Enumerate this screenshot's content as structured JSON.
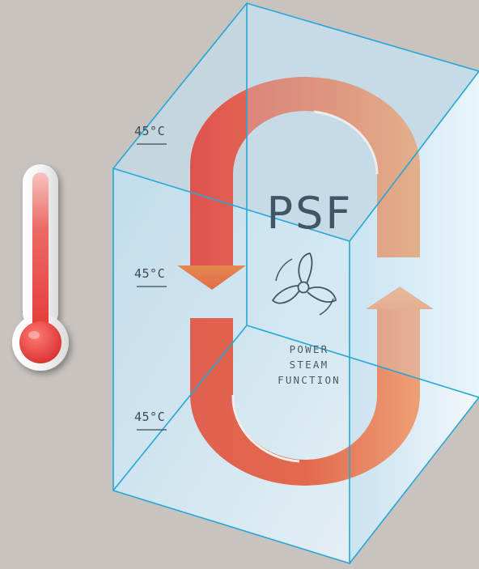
{
  "title": "PSF",
  "subtitle_lines": [
    "POWER",
    "STEAM",
    "FUNCTION"
  ],
  "temperature_labels": [
    "45°C",
    "45°C",
    "45°C"
  ],
  "icons": {
    "thermometer": "thermometer-icon",
    "fan": "fan-icon",
    "arrow_down": "arrow-down-icon",
    "arrow_up": "arrow-up-icon"
  },
  "colors": {
    "background": "#c8c3bf",
    "box_edge": "#25a7d8",
    "arrow_red": "#e0524f",
    "arrow_orange": "#e8965a",
    "thermometer_red": "#e43a38",
    "text": "#3e5665"
  }
}
